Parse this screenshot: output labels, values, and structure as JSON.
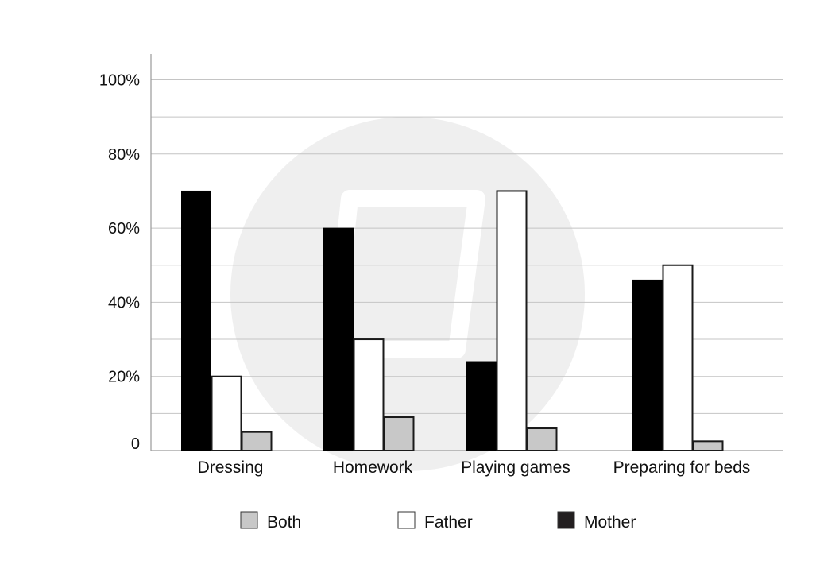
{
  "chart_data": {
    "type": "bar",
    "title": "",
    "xlabel": "",
    "ylabel": "",
    "categories": [
      "Dressing",
      "Homework",
      "Playing games",
      "Preparing for beds"
    ],
    "series": [
      {
        "name": "Mother",
        "values": [
          70,
          60,
          24,
          46
        ],
        "color": "#000000"
      },
      {
        "name": "Father",
        "values": [
          20,
          30,
          70,
          50
        ],
        "color": "#ffffff"
      },
      {
        "name": "Both",
        "values": [
          5,
          9,
          6,
          2.5
        ],
        "color": "#c8c8c8"
      }
    ],
    "ylim": [
      0,
      100
    ],
    "y_ticks": [
      {
        "value": 0,
        "label": "0"
      },
      {
        "value": 20,
        "label": "20%"
      },
      {
        "value": 40,
        "label": "40%"
      },
      {
        "value": 60,
        "label": "60%"
      },
      {
        "value": 80,
        "label": "80%"
      },
      {
        "value": 100,
        "label": "100%"
      }
    ],
    "gridlines": [
      10,
      20,
      30,
      40,
      50,
      60,
      70,
      80,
      90,
      100
    ],
    "grid": true,
    "legend": {
      "position": "bottom",
      "items": [
        {
          "name": "Both",
          "color": "#c8c8c8"
        },
        {
          "name": "Father",
          "color": "#ffffff"
        },
        {
          "name": "Mother",
          "color": "#231f20"
        }
      ]
    }
  }
}
